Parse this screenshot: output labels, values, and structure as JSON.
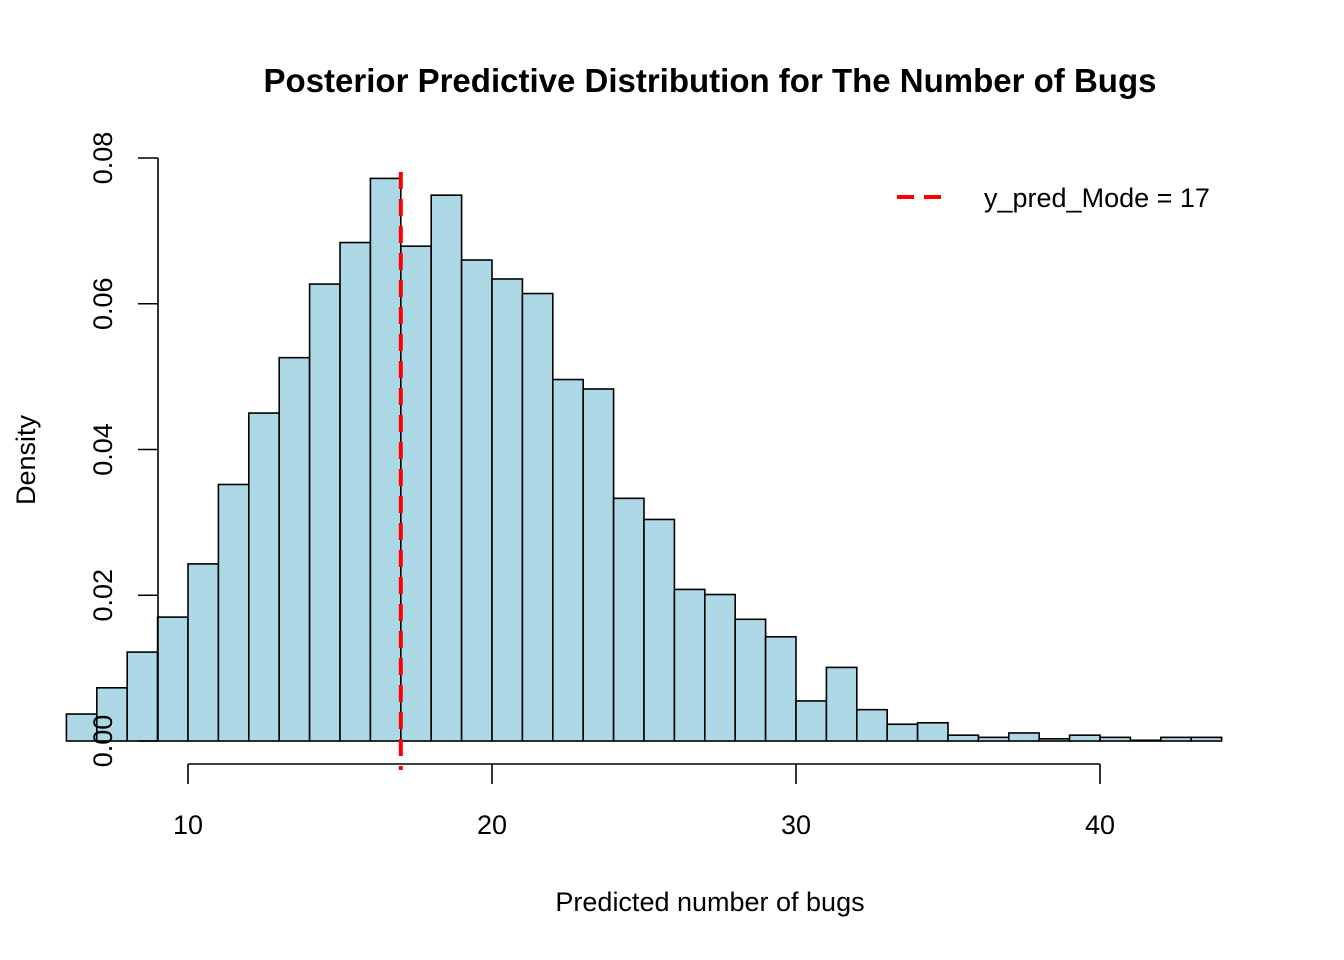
{
  "chart_data": {
    "type": "bar",
    "title": "Posterior Predictive Distribution for The Number of Bugs",
    "xlabel": "Predicted number of bugs",
    "ylabel": "Density",
    "xlim": [
      6,
      44
    ],
    "ylim": [
      0,
      0.08
    ],
    "x_ticks": [
      10,
      20,
      30,
      40
    ],
    "y_ticks": [
      0.0,
      0.02,
      0.04,
      0.06,
      0.08
    ],
    "y_tick_labels": [
      "0.00",
      "0.02",
      "0.04",
      "0.06",
      "0.08"
    ],
    "bin_width": 1,
    "bins": [
      {
        "start": 6,
        "end": 7,
        "density": 0.0037
      },
      {
        "start": 7,
        "end": 8,
        "density": 0.0073
      },
      {
        "start": 8,
        "end": 9,
        "density": 0.0122
      },
      {
        "start": 9,
        "end": 10,
        "density": 0.017
      },
      {
        "start": 10,
        "end": 11,
        "density": 0.0243
      },
      {
        "start": 11,
        "end": 12,
        "density": 0.0352
      },
      {
        "start": 12,
        "end": 13,
        "density": 0.045
      },
      {
        "start": 13,
        "end": 14,
        "density": 0.0526
      },
      {
        "start": 14,
        "end": 15,
        "density": 0.0627
      },
      {
        "start": 15,
        "end": 16,
        "density": 0.0684
      },
      {
        "start": 16,
        "end": 17,
        "density": 0.0772
      },
      {
        "start": 17,
        "end": 18,
        "density": 0.0679
      },
      {
        "start": 18,
        "end": 19,
        "density": 0.0749
      },
      {
        "start": 19,
        "end": 20,
        "density": 0.066
      },
      {
        "start": 20,
        "end": 21,
        "density": 0.0634
      },
      {
        "start": 21,
        "end": 22,
        "density": 0.0614
      },
      {
        "start": 22,
        "end": 23,
        "density": 0.0496
      },
      {
        "start": 23,
        "end": 24,
        "density": 0.0483
      },
      {
        "start": 24,
        "end": 25,
        "density": 0.0333
      },
      {
        "start": 25,
        "end": 26,
        "density": 0.0304
      },
      {
        "start": 26,
        "end": 27,
        "density": 0.0208
      },
      {
        "start": 27,
        "end": 28,
        "density": 0.0201
      },
      {
        "start": 28,
        "end": 29,
        "density": 0.0167
      },
      {
        "start": 29,
        "end": 30,
        "density": 0.0143
      },
      {
        "start": 30,
        "end": 31,
        "density": 0.0055
      },
      {
        "start": 31,
        "end": 32,
        "density": 0.0101
      },
      {
        "start": 32,
        "end": 33,
        "density": 0.0043
      },
      {
        "start": 33,
        "end": 34,
        "density": 0.0023
      },
      {
        "start": 34,
        "end": 35,
        "density": 0.0025
      },
      {
        "start": 35,
        "end": 36,
        "density": 0.0008
      },
      {
        "start": 36,
        "end": 37,
        "density": 0.0005
      },
      {
        "start": 37,
        "end": 38,
        "density": 0.0011
      },
      {
        "start": 38,
        "end": 39,
        "density": 0.0003
      },
      {
        "start": 39,
        "end": 40,
        "density": 0.0008
      },
      {
        "start": 40,
        "end": 41,
        "density": 0.0005
      },
      {
        "start": 41,
        "end": 42,
        "density": 0.0001
      },
      {
        "start": 42,
        "end": 43,
        "density": 0.0005
      },
      {
        "start": 43,
        "end": 44,
        "density": 0.0005
      }
    ],
    "reference_line": {
      "x": 17,
      "style": "dashed",
      "color": "#ff0000"
    },
    "legend": {
      "position": "top-right",
      "entries": [
        {
          "label": "y_pred_Mode = 17",
          "color": "#ff0000",
          "style": "dashed"
        }
      ]
    },
    "bar_fill": "#add8e6",
    "bar_stroke": "#000000",
    "grid": false
  }
}
